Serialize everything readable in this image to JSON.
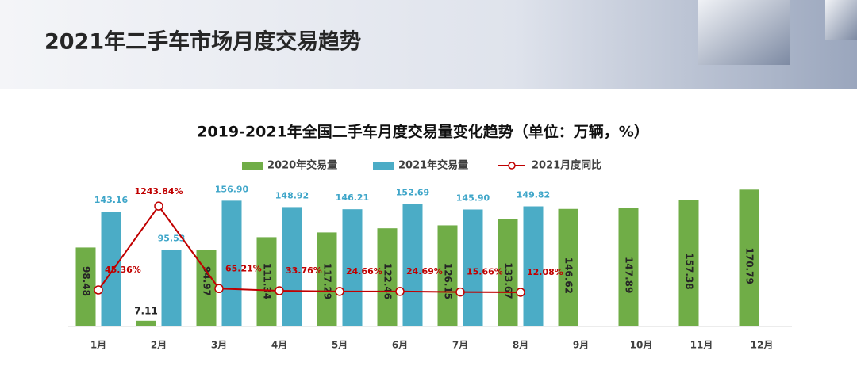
{
  "header": {
    "title": "2021年二手车市场月度交易趋势"
  },
  "chart_data": {
    "type": "bar",
    "title": "2019-2021年全国二手车月度交易量变化趋势（单位：万辆，%）",
    "categories": [
      "1月",
      "2月",
      "3月",
      "4月",
      "5月",
      "6月",
      "7月",
      "8月",
      "9月",
      "10月",
      "11月",
      "12月"
    ],
    "ylim": [
      0,
      180
    ],
    "y2lim": [
      -475,
      1585
    ],
    "series": [
      {
        "name": "2020年交易量",
        "color": "#70ad47",
        "values": [
          98.48,
          7.11,
          94.97,
          111.34,
          117.29,
          122.46,
          126.15,
          133.67,
          146.62,
          147.89,
          157.38,
          170.79
        ]
      },
      {
        "name": "2021年交易量",
        "color": "#4bacc6",
        "values": [
          143.16,
          95.53,
          156.9,
          148.92,
          146.21,
          152.69,
          145.9,
          149.82,
          null,
          null,
          null,
          null
        ],
        "value_labels": [
          "143.16",
          "95.53",
          "156.90",
          "148.92",
          "146.21",
          "152.69",
          "145.90",
          "149.82",
          null,
          null,
          null,
          null
        ]
      },
      {
        "name": "2021月度同比",
        "color": "#c00000",
        "type": "line",
        "axis": "y2",
        "values": [
          45.36,
          1243.84,
          65.21,
          33.76,
          24.66,
          24.69,
          15.66,
          12.08,
          null,
          null,
          null,
          null
        ],
        "value_labels": [
          "45.36%",
          "1243.84%",
          "65.21%",
          "33.76%",
          "24.66%",
          "24.69%",
          "15.66%",
          "12.08%",
          null,
          null,
          null,
          null
        ]
      }
    ]
  }
}
